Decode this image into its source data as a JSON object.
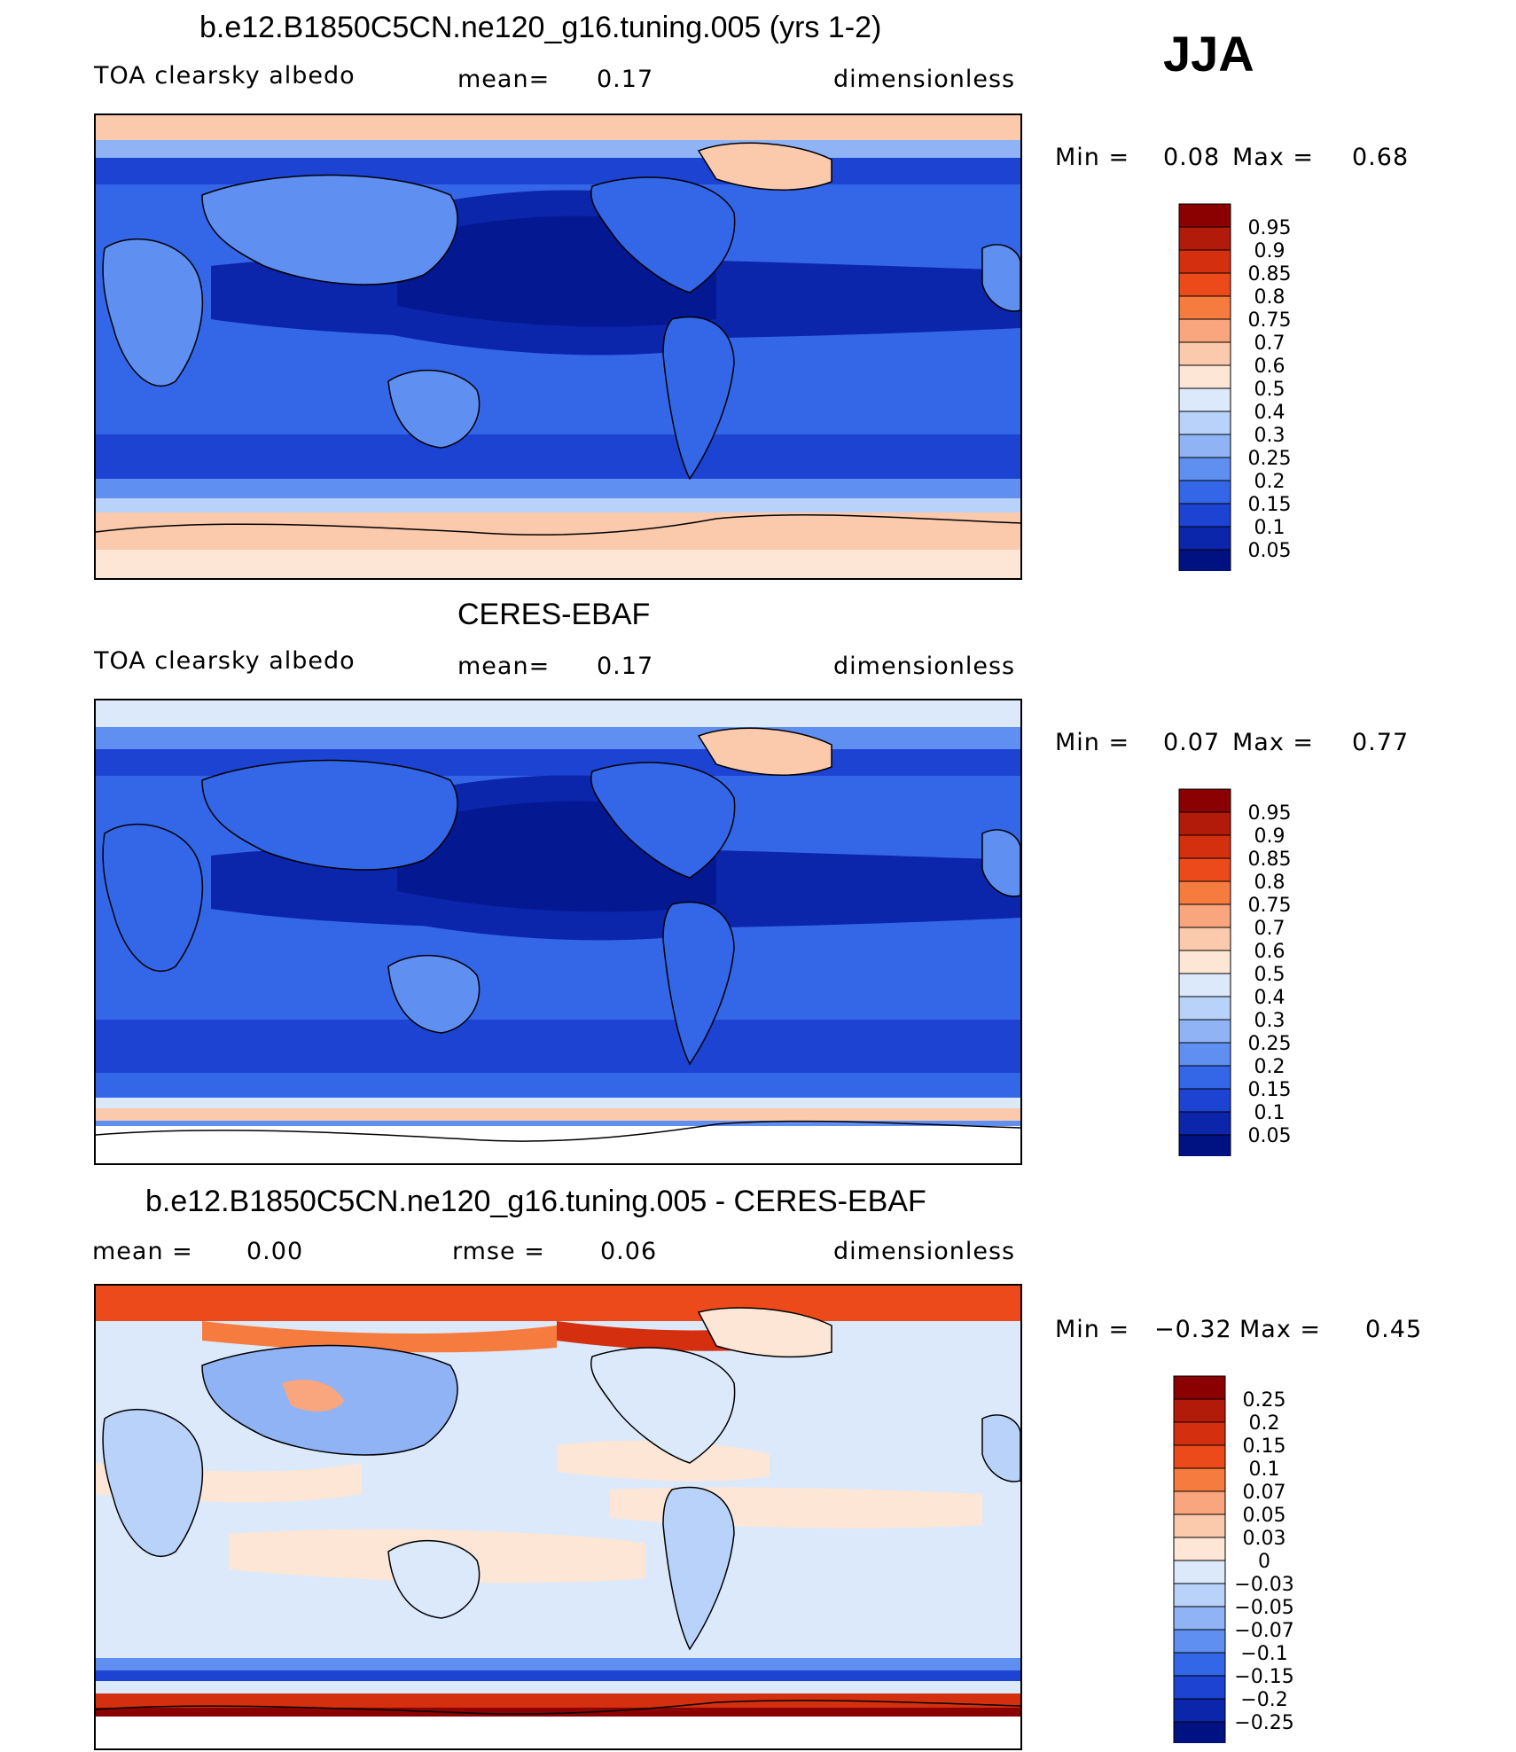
{
  "season": "JJA",
  "panels": [
    {
      "title": "b.e12.B1850C5CN.ne120_g16.tuning.005 (yrs 1-2)",
      "left_label": "TOA clearsky albedo",
      "stat1_label": "mean=",
      "stat1_value": "0.17",
      "stat2_label": "",
      "stat2_value": "",
      "units": "dimensionless",
      "min_label": "Min =",
      "min_value": "0.08",
      "max_label": "Max =",
      "max_value": "0.68"
    },
    {
      "title": "CERES-EBAF",
      "left_label": "TOA clearsky albedo",
      "stat1_label": "mean=",
      "stat1_value": "0.17",
      "stat2_label": "",
      "stat2_value": "",
      "units": "dimensionless",
      "min_label": "Min =",
      "min_value": "0.07",
      "max_label": "Max =",
      "max_value": "0.77"
    },
    {
      "title": "b.e12.B1850C5CN.ne120_g16.tuning.005 - CERES-EBAF",
      "left_label": "",
      "stat1_label": "mean =",
      "stat1_value": "0.00",
      "stat2_label": "rmse =",
      "stat2_value": "0.06",
      "units": "dimensionless",
      "min_label": "Min =",
      "min_value": "−0.32",
      "max_label": "Max =",
      "max_value": "0.45"
    }
  ],
  "chart_data": [
    {
      "type": "heatmap",
      "title": "b.e12.B1850C5CN.ne120_g16.tuning.005 (yrs 1-2)",
      "variable": "TOA clearsky albedo",
      "units": "dimensionless",
      "mean": 0.17,
      "min": 0.08,
      "max": 0.68,
      "colorbar_levels": [
        "0.95",
        "0.9",
        "0.85",
        "0.8",
        "0.75",
        "0.7",
        "0.6",
        "0.5",
        "0.4",
        "0.3",
        "0.25",
        "0.2",
        "0.15",
        "0.1",
        "0.05"
      ],
      "colorbar_colors": [
        "#8b0000",
        "#b21a0a",
        "#d4300f",
        "#ec4a1a",
        "#f67b3e",
        "#f9a57d",
        "#fbc9ac",
        "#fde6d5",
        "#dbe9fb",
        "#b8d2f9",
        "#8fb3f5",
        "#5f8ff0",
        "#3466e8",
        "#1c43d2",
        "#0b25ab",
        "#001182"
      ]
    },
    {
      "type": "heatmap",
      "title": "CERES-EBAF",
      "variable": "TOA clearsky albedo",
      "units": "dimensionless",
      "mean": 0.17,
      "min": 0.07,
      "max": 0.77,
      "colorbar_levels": [
        "0.95",
        "0.9",
        "0.85",
        "0.8",
        "0.75",
        "0.7",
        "0.6",
        "0.5",
        "0.4",
        "0.3",
        "0.25",
        "0.2",
        "0.15",
        "0.1",
        "0.05"
      ],
      "colorbar_colors": [
        "#8b0000",
        "#b21a0a",
        "#d4300f",
        "#ec4a1a",
        "#f67b3e",
        "#f9a57d",
        "#fbc9ac",
        "#fde6d5",
        "#dbe9fb",
        "#b8d2f9",
        "#8fb3f5",
        "#5f8ff0",
        "#3466e8",
        "#1c43d2",
        "#0b25ab",
        "#001182"
      ]
    },
    {
      "type": "heatmap",
      "title": "b.e12.B1850C5CN.ne120_g16.tuning.005 - CERES-EBAF",
      "units": "dimensionless",
      "mean": 0.0,
      "rmse": 0.06,
      "min": -0.32,
      "max": 0.45,
      "colorbar_levels": [
        "0.25",
        "0.2",
        "0.15",
        "0.1",
        "0.07",
        "0.05",
        "0.03",
        "0",
        "−0.03",
        "−0.05",
        "−0.07",
        "−0.1",
        "−0.15",
        "−0.2",
        "−0.25"
      ],
      "colorbar_colors": [
        "#8b0000",
        "#b21a0a",
        "#d4300f",
        "#ec4a1a",
        "#f67b3e",
        "#f9a57d",
        "#fbc9ac",
        "#fde6d5",
        "#dbe9fb",
        "#b8d2f9",
        "#8fb3f5",
        "#5f8ff0",
        "#3466e8",
        "#1c43d2",
        "#0b25ab",
        "#001182"
      ]
    }
  ]
}
